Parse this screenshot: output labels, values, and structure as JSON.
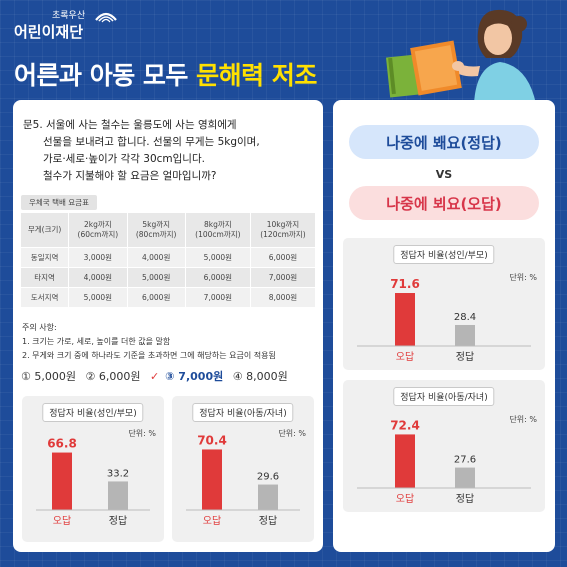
{
  "logo": {
    "sub": "초록우산",
    "main": "어린이재단"
  },
  "headline": {
    "prefix": "어른과 아동 모두",
    "highlight": "문해력 저조"
  },
  "question": {
    "lines": [
      "문5. 서울에 사는 철수는 울릉도에 사는 영희에게",
      "선물을 보내려고 합니다. 선물의 무게는 5kg이며,",
      "가로·세로·높이가 각각 30cm입니다.",
      "철수가 지불해야 할 요금은 얼마입니까?"
    ]
  },
  "fee_table": {
    "title": "우체국 택배 요금표",
    "headers": [
      {
        "line1": "무게(크기)",
        "line2": ""
      },
      {
        "line1": "2kg까지",
        "line2": "(60cm까지)"
      },
      {
        "line1": "5kg까지",
        "line2": "(80cm까지)"
      },
      {
        "line1": "8kg까지",
        "line2": "(100cm까지)"
      },
      {
        "line1": "10kg까지",
        "line2": "(120cm까지)"
      }
    ],
    "rows": [
      [
        "동일지역",
        "3,000원",
        "4,000원",
        "5,000원",
        "6,000원"
      ],
      [
        "타지역",
        "4,000원",
        "5,000원",
        "6,000원",
        "7,000원"
      ],
      [
        "도서지역",
        "5,000원",
        "6,000원",
        "7,000원",
        "8,000원"
      ]
    ]
  },
  "notes": {
    "title": "주의 사항:",
    "items": [
      "1. 크기는 가로, 세로, 높이를 더한 값을 말함",
      "2. 무게와 크기 중에 하나라도 기준을 초과하면 그에 해당하는 요금이 적용됨"
    ]
  },
  "options": [
    "① 5,000원",
    "② 6,000원",
    "③ 7,000원",
    "④ 8,000원"
  ],
  "option_correct_index": 2,
  "vs": {
    "correct_phrase": "나중에 봬요(정답)",
    "vs_label": "VS",
    "wrong_phrase": "나중에 뵈요(오답)"
  },
  "colors": {
    "navy": "#1e4c9a",
    "red": "#e03a3a",
    "gray": "#b5b5b5",
    "yellow": "#ffe000"
  },
  "chart_data": [
    {
      "type": "bar",
      "title": "정답자 비율(성인/부모)",
      "unit": "단위: %",
      "categories": [
        "오답",
        "정답"
      ],
      "values": [
        66.8,
        33.2
      ],
      "colors": [
        "#e03a3a",
        "#b5b5b5"
      ],
      "ylim": [
        0,
        100
      ]
    },
    {
      "type": "bar",
      "title": "정답자 비율(아동/자녀)",
      "unit": "단위: %",
      "categories": [
        "오답",
        "정답"
      ],
      "values": [
        70.4,
        29.6
      ],
      "colors": [
        "#e03a3a",
        "#b5b5b5"
      ],
      "ylim": [
        0,
        100
      ]
    },
    {
      "type": "bar",
      "title": "정답자 비율(성인/부모)",
      "unit": "단위: %",
      "categories": [
        "오답",
        "정답"
      ],
      "values": [
        71.6,
        28.4
      ],
      "colors": [
        "#e03a3a",
        "#b5b5b5"
      ],
      "ylim": [
        0,
        100
      ]
    },
    {
      "type": "bar",
      "title": "정답자 비율(아동/자녀)",
      "unit": "단위: %",
      "categories": [
        "오답",
        "정답"
      ],
      "values": [
        72.4,
        27.6
      ],
      "colors": [
        "#e03a3a",
        "#b5b5b5"
      ],
      "ylim": [
        0,
        100
      ]
    }
  ]
}
